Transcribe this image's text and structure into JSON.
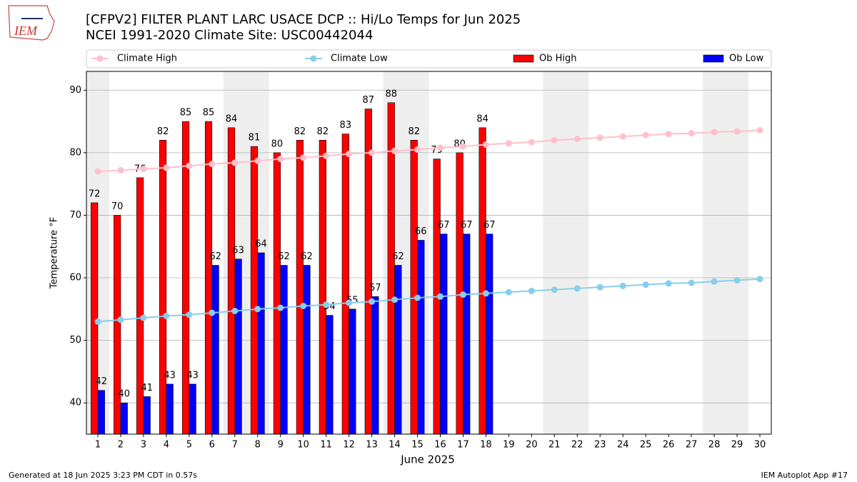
{
  "chart_data": {
    "type": "bar_line",
    "title": "[CFPV2] FILTER PLANT LARC  USACE DCP :: Hi/Lo Temps for Jun 2025",
    "subtitle": "NCEI 1991-2020 Climate Site: USC00442044",
    "logo_text": "IEM",
    "xlabel": "June 2025",
    "ylabel": "Temperature °F",
    "footer_left": "Generated at 18 Jun 2025 3:23 PM CDT in 0.57s",
    "footer_right": "IEM Autoplot App #17",
    "x": [
      1,
      2,
      3,
      4,
      5,
      6,
      7,
      8,
      9,
      10,
      11,
      12,
      13,
      14,
      15,
      16,
      17,
      18,
      19,
      20,
      21,
      22,
      23,
      24,
      25,
      26,
      27,
      28,
      29,
      30
    ],
    "xlim": [
      0.5,
      30.5
    ],
    "xticks": [
      1,
      2,
      3,
      4,
      5,
      6,
      7,
      8,
      9,
      10,
      11,
      12,
      13,
      14,
      15,
      16,
      17,
      18,
      19,
      20,
      21,
      22,
      23,
      24,
      25,
      26,
      27,
      28,
      29,
      30
    ],
    "ylim": [
      35,
      93
    ],
    "yticks": [
      40,
      50,
      60,
      70,
      80,
      90
    ],
    "grid": true,
    "legend": "top",
    "weekend_spans": [
      [
        0.5,
        1.5
      ],
      [
        6.5,
        8.5
      ],
      [
        13.5,
        15.5
      ],
      [
        20.5,
        22.5
      ],
      [
        27.5,
        29.5
      ]
    ],
    "series": [
      {
        "name": "Climate High",
        "kind": "line",
        "color": "#ffc0cb",
        "values": [
          77.0,
          77.2,
          77.4,
          77.6,
          77.9,
          78.2,
          78.4,
          78.7,
          79.0,
          79.2,
          79.5,
          79.8,
          80.0,
          80.3,
          80.5,
          80.8,
          81.0,
          81.3,
          81.5,
          81.7,
          82.0,
          82.2,
          82.4,
          82.6,
          82.8,
          83.0,
          83.1,
          83.3,
          83.4,
          83.6
        ]
      },
      {
        "name": "Climate Low",
        "kind": "line",
        "color": "#87ceeb",
        "values": [
          53.0,
          53.3,
          53.6,
          53.9,
          54.1,
          54.4,
          54.7,
          55.0,
          55.2,
          55.5,
          55.7,
          56.0,
          56.2,
          56.5,
          56.8,
          57.0,
          57.3,
          57.5,
          57.7,
          57.9,
          58.1,
          58.3,
          58.5,
          58.7,
          58.9,
          59.1,
          59.2,
          59.4,
          59.6,
          59.8
        ]
      },
      {
        "name": "Ob High",
        "kind": "bar",
        "color": "#ff0000",
        "values": [
          72,
          70,
          76,
          82,
          85,
          85,
          84,
          81,
          80,
          82,
          82,
          83,
          87,
          88,
          82,
          79,
          80,
          84,
          null,
          null,
          null,
          null,
          null,
          null,
          null,
          null,
          null,
          null,
          null,
          null
        ]
      },
      {
        "name": "Ob Low",
        "kind": "bar",
        "color": "#0000ff",
        "values": [
          42,
          40,
          41,
          43,
          43,
          62,
          63,
          64,
          62,
          62,
          54,
          55,
          57,
          62,
          66,
          67,
          67,
          67,
          null,
          null,
          null,
          null,
          null,
          null,
          null,
          null,
          null,
          null,
          null,
          null
        ]
      }
    ]
  }
}
